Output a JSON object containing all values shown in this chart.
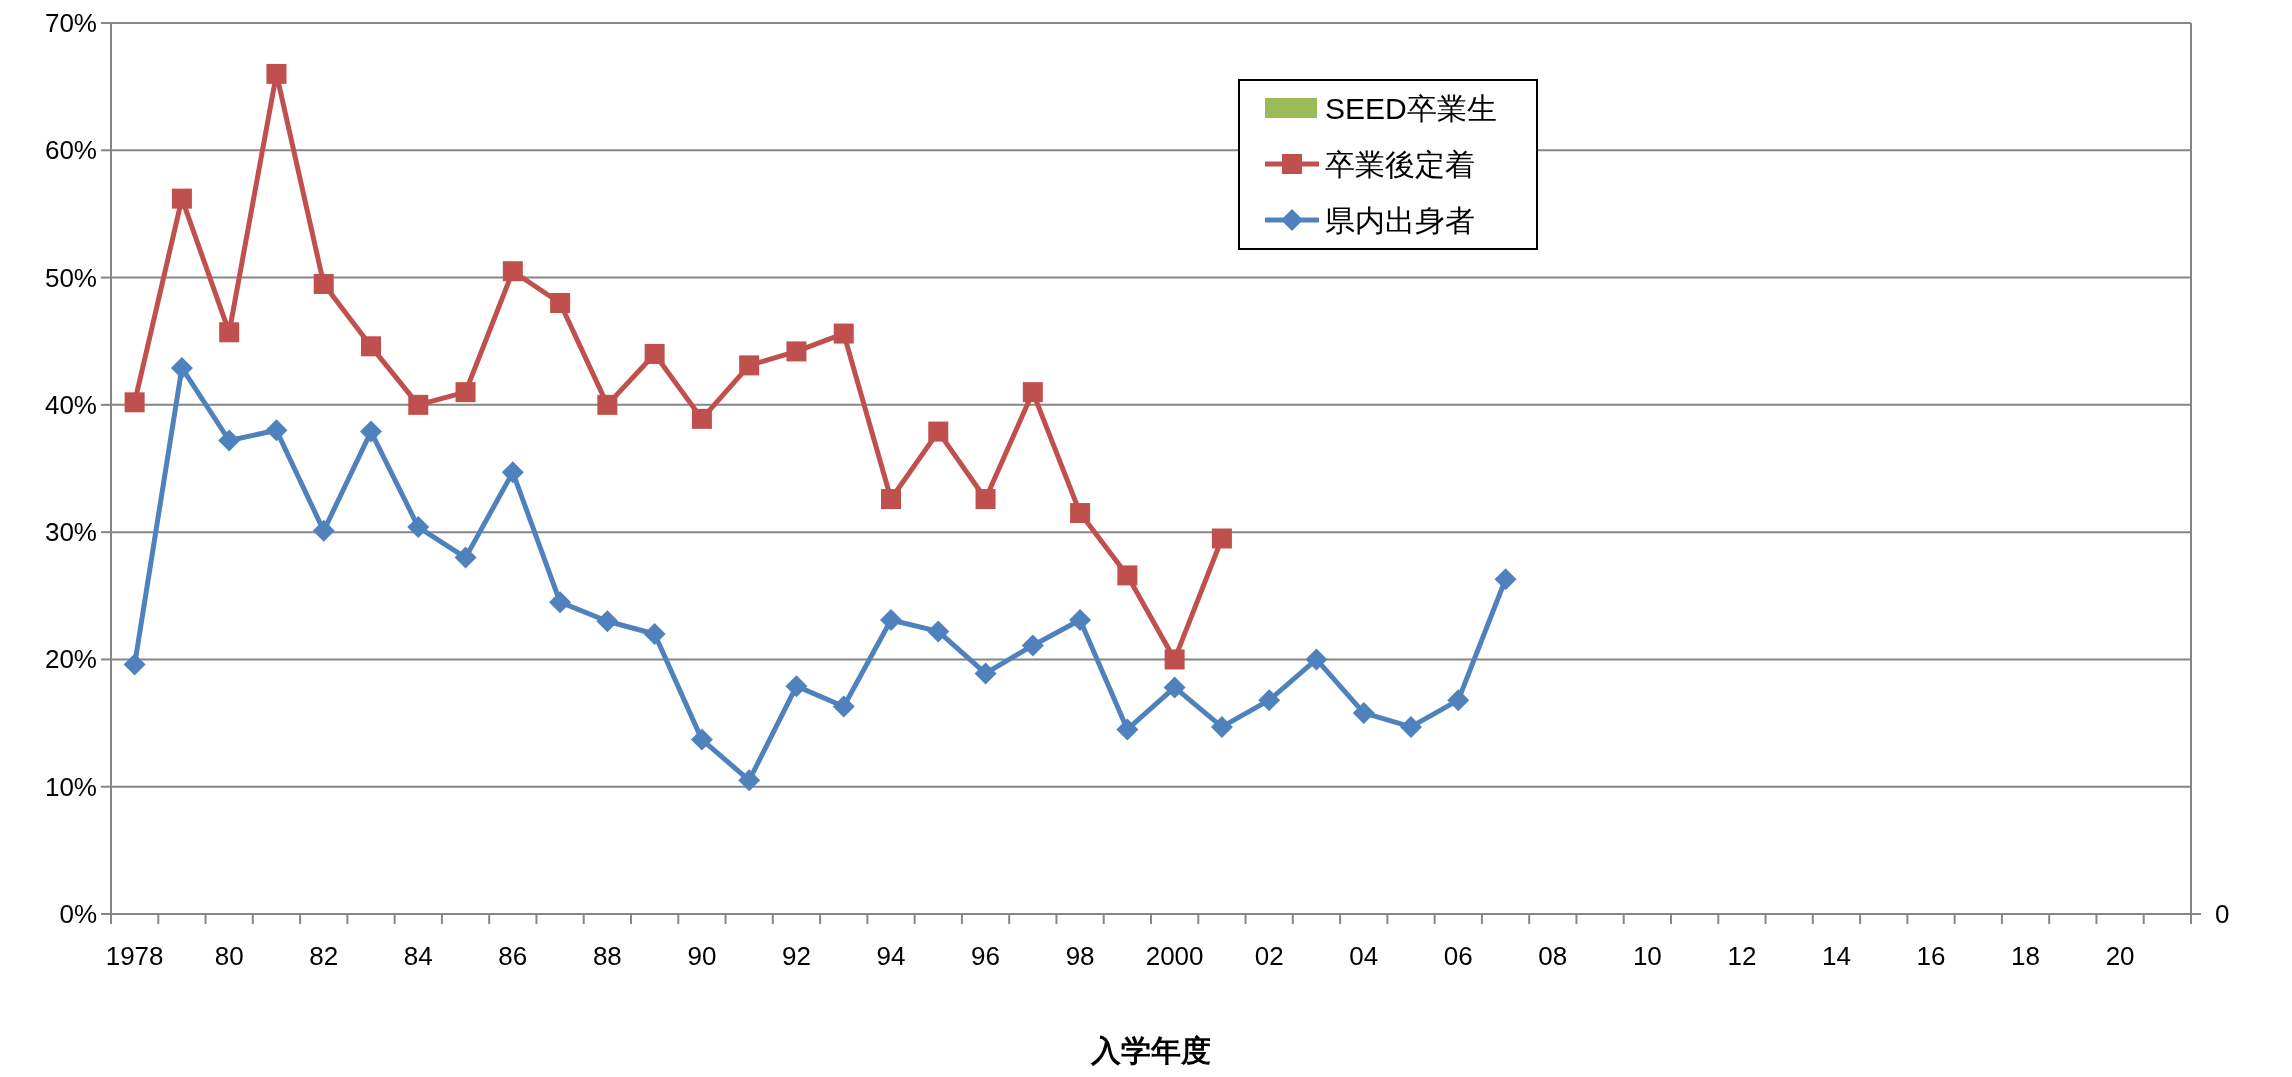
{
  "chart_data": {
    "type": "line",
    "xlabel": "入学年度",
    "categories": [
      "1978",
      null,
      "80",
      null,
      "82",
      null,
      "84",
      null,
      "86",
      null,
      "88",
      null,
      "90",
      null,
      "92",
      null,
      "94",
      null,
      "96",
      null,
      "98",
      null,
      "2000",
      null,
      "02",
      null,
      "04",
      null,
      "06",
      null,
      "08",
      null,
      "10",
      null,
      "12",
      null,
      "14",
      null,
      "16",
      null,
      "18",
      null,
      "20",
      null
    ],
    "ylim": [
      0,
      70
    ],
    "yticks": [
      {
        "value": 0,
        "label": "0%"
      },
      {
        "value": 10,
        "label": "10%"
      },
      {
        "value": 20,
        "label": "20%"
      },
      {
        "value": 30,
        "label": "30%"
      },
      {
        "value": 40,
        "label": "40%"
      },
      {
        "value": 50,
        "label": "50%"
      },
      {
        "value": 60,
        "label": "60%"
      },
      {
        "value": 70,
        "label": "70%"
      }
    ],
    "annotations": [
      "0"
    ],
    "grid": "y",
    "legend": "top right",
    "series": [
      {
        "name": "SEED卒業生",
        "type": "bar",
        "color": "#9bbb59",
        "values": [
          null,
          null,
          null,
          null,
          null,
          null,
          null,
          null,
          null,
          null,
          null,
          null,
          null,
          null,
          null,
          null,
          null,
          null,
          null,
          null,
          null,
          null,
          null,
          null,
          null,
          null,
          null,
          null,
          null,
          null,
          null,
          null,
          null,
          null,
          null,
          null,
          null,
          null,
          null,
          null,
          null,
          null,
          null,
          null
        ]
      },
      {
        "name": "卒業後定着",
        "marker": "square",
        "color": "#c0504d",
        "values": [
          40.2,
          56.2,
          45.7,
          66.0,
          49.5,
          44.6,
          40,
          41,
          50.5,
          48,
          40,
          44,
          38.9,
          43.1,
          44.2,
          45.6,
          32.6,
          37.9,
          32.6,
          41,
          31.5,
          26.6,
          20,
          29.5,
          null,
          null,
          null,
          null,
          null,
          null,
          null,
          null,
          null,
          null,
          null,
          null,
          null,
          null,
          null,
          null,
          null,
          null,
          null,
          null
        ]
      },
      {
        "name": "県内出身者",
        "marker": "diamond",
        "color": "#4f81bd",
        "values": [
          19.6,
          42.9,
          37.2,
          38,
          30.1,
          37.9,
          30.4,
          28,
          34.7,
          24.5,
          23,
          22,
          13.7,
          10.5,
          17.9,
          16.3,
          23.1,
          22.2,
          18.9,
          21.1,
          23.1,
          14.5,
          17.8,
          14.7,
          16.8,
          20,
          15.8,
          14.7,
          16.8,
          26.3,
          null,
          null,
          null,
          null,
          null,
          null,
          null,
          null,
          null,
          null,
          null,
          null,
          null,
          null
        ]
      }
    ]
  }
}
